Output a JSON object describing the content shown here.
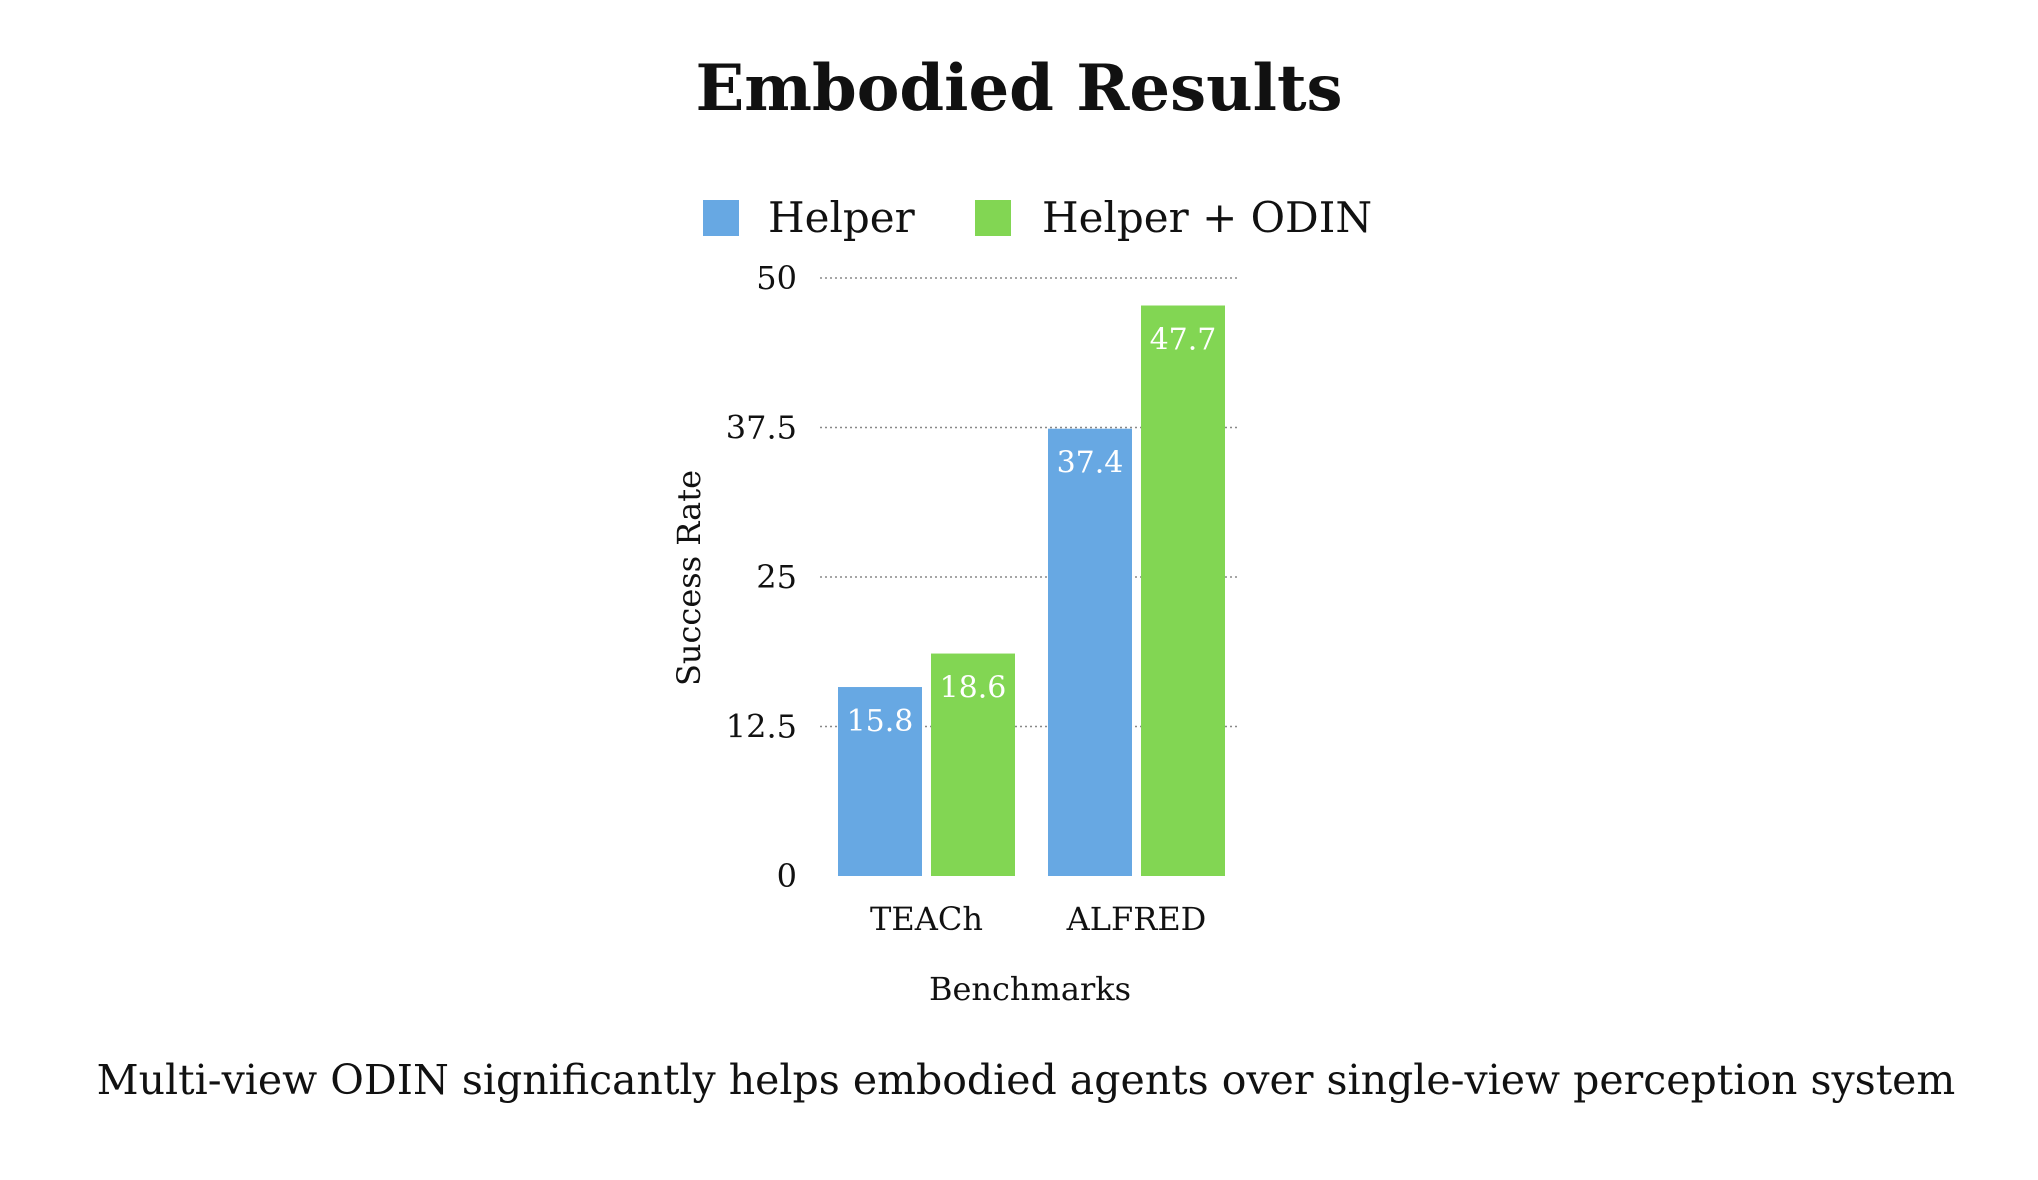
{
  "colors": {
    "helper": "#67a8e3",
    "helper_odin": "#82d653",
    "text": "#111111",
    "grid": "#888888",
    "background": "#ffffff"
  },
  "caption": "Multi-view ODIN significantly helps embodied agents over single-view perception system",
  "chart_data": {
    "type": "bar",
    "title": "Embodied Results",
    "xlabel": "Benchmarks",
    "ylabel": "Success Rate",
    "categories": [
      "TEACh",
      "ALFRED"
    ],
    "series": [
      {
        "name": "Helper",
        "values": [
          15.8,
          37.4
        ],
        "labels": [
          "15.8",
          "37.4"
        ]
      },
      {
        "name": "Helper + ODIN",
        "values": [
          18.6,
          47.7
        ],
        "labels": [
          "18.6",
          "47.7"
        ]
      }
    ],
    "ylim": [
      0,
      50
    ],
    "yticks": [
      0,
      12.5,
      25,
      37.5,
      50
    ],
    "ytick_labels": [
      "0",
      "12.5",
      "25",
      "37.5",
      "50"
    ],
    "grid": true,
    "legend": "top-center",
    "data_labels": "inside-top"
  }
}
